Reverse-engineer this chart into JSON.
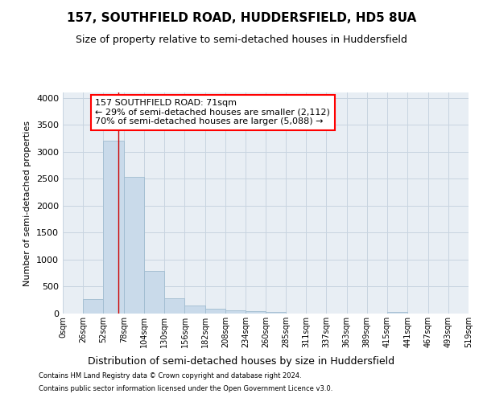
{
  "title1": "157, SOUTHFIELD ROAD, HUDDERSFIELD, HD5 8UA",
  "title2": "Size of property relative to semi-detached houses in Huddersfield",
  "xlabel": "Distribution of semi-detached houses by size in Huddersfield",
  "ylabel": "Number of semi-detached properties",
  "footer1": "Contains HM Land Registry data © Crown copyright and database right 2024.",
  "footer2": "Contains public sector information licensed under the Open Government Licence v3.0.",
  "annotation_line1": "157 SOUTHFIELD ROAD: 71sqm",
  "annotation_line2": "← 29% of semi-detached houses are smaller (2,112)",
  "annotation_line3": "70% of semi-detached houses are larger (5,088) →",
  "bar_color": "#c9daea",
  "bar_edge_color": "#a0bcd0",
  "grid_color": "#c8d4e0",
  "background_color": "#e8eef4",
  "marker_color": "#cc0000",
  "ylim": [
    0,
    4100
  ],
  "bin_edges": [
    0,
    26,
    52,
    78,
    104,
    130,
    156,
    182,
    208,
    234,
    260,
    285,
    311,
    337,
    363,
    389,
    415,
    441,
    467,
    493,
    519
  ],
  "bar_heights": [
    0,
    265,
    3200,
    2530,
    790,
    290,
    150,
    85,
    60,
    50,
    35,
    0,
    0,
    0,
    0,
    0,
    35,
    0,
    0,
    0
  ],
  "property_size": 71,
  "tick_labels": [
    "0sqm",
    "26sqm",
    "52sqm",
    "78sqm",
    "104sqm",
    "130sqm",
    "156sqm",
    "182sqm",
    "208sqm",
    "234sqm",
    "260sqm",
    "285sqm",
    "311sqm",
    "337sqm",
    "363sqm",
    "389sqm",
    "415sqm",
    "441sqm",
    "467sqm",
    "493sqm",
    "519sqm"
  ],
  "title1_fontsize": 11,
  "title2_fontsize": 9,
  "xlabel_fontsize": 9,
  "ylabel_fontsize": 8,
  "tick_fontsize": 7,
  "footer_fontsize": 6,
  "annot_fontsize": 8
}
